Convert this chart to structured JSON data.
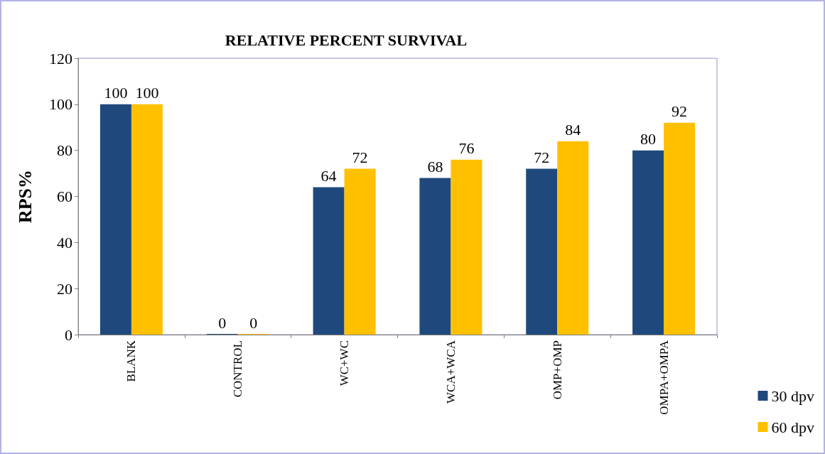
{
  "chart_data": {
    "type": "bar",
    "title": "RELATIVE PERCENT SURVIVAL",
    "ylabel": "RPS%",
    "categories": [
      "BLANK",
      "CONTROL",
      "WC+WC",
      "WCA+WCA",
      "OMP+OMP",
      "OMPA+OMPA"
    ],
    "series": [
      {
        "name": "30 dpv",
        "color": "#1f497d",
        "values": [
          100,
          0,
          64,
          68,
          72,
          80
        ]
      },
      {
        "name": "60 dpv",
        "color": "#ffc000",
        "values": [
          100,
          0,
          72,
          76,
          84,
          92
        ]
      }
    ],
    "ylim": [
      0,
      120
    ],
    "yticks": [
      0,
      20,
      40,
      60,
      80,
      100,
      120
    ],
    "grid": false,
    "legend": "bottom right",
    "data_labels": true
  }
}
